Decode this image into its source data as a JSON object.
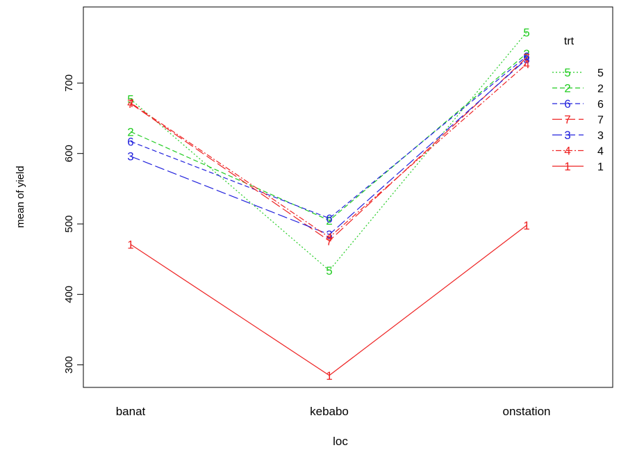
{
  "chart_data": {
    "type": "line",
    "xlabel": "loc",
    "ylabel": "mean of yield",
    "categories": [
      "banat",
      "kebabo",
      "onstation"
    ],
    "ylim": [
      268,
      808
    ],
    "yticks": [
      300,
      400,
      500,
      600,
      700
    ],
    "grid": false,
    "legend": {
      "title": "trt",
      "placement": "top-right"
    },
    "series": [
      {
        "name": "5",
        "color": "#22cc22",
        "dash": "dotted",
        "values": [
          677,
          434,
          772
        ]
      },
      {
        "name": "2",
        "color": "#22cc22",
        "dash": "dashed",
        "values": [
          631,
          505,
          742
        ]
      },
      {
        "name": "6",
        "color": "#2222dd",
        "dash": "dashed",
        "values": [
          617,
          508,
          738
        ]
      },
      {
        "name": "7",
        "color": "#ee2222",
        "dash": "longdash",
        "values": [
          671,
          476,
          736
        ]
      },
      {
        "name": "3",
        "color": "#2222dd",
        "dash": "longdash",
        "values": [
          596,
          485,
          734
        ]
      },
      {
        "name": "4",
        "color": "#ee2222",
        "dash": "dotdash",
        "values": [
          672,
          481,
          727
        ]
      },
      {
        "name": "1",
        "color": "#ee2222",
        "dash": "solid",
        "values": [
          471,
          285,
          498
        ]
      }
    ]
  }
}
